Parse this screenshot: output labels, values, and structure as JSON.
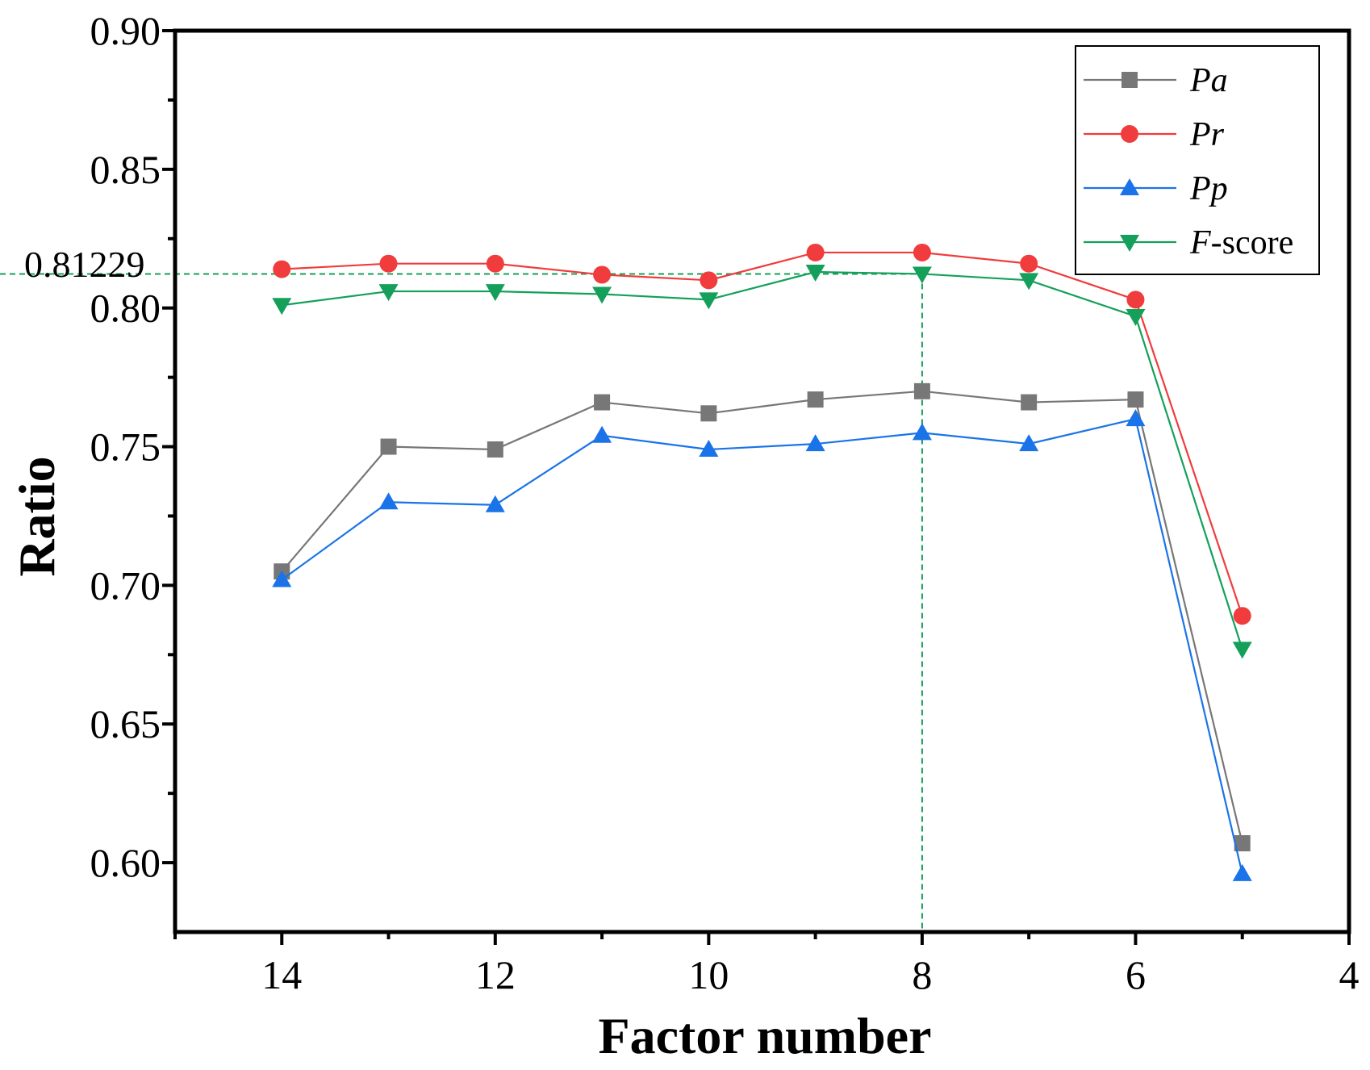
{
  "chart_data": {
    "type": "line",
    "title": "",
    "xlabel": "Factor number",
    "ylabel": "Ratio",
    "xlim": [
      15,
      4
    ],
    "ylim": [
      0.575,
      0.9
    ],
    "x_ticks": [
      14,
      12,
      10,
      8,
      6,
      4
    ],
    "x_tick_labels": [
      "14",
      "12",
      "10",
      "8",
      "6",
      "4"
    ],
    "y_ticks": [
      0.6,
      0.65,
      0.7,
      0.75,
      0.8,
      0.85,
      0.9
    ],
    "y_tick_labels": [
      "0.60",
      "0.65",
      "0.70",
      "0.75",
      "0.80",
      "0.85",
      "0.90"
    ],
    "x": [
      14,
      13,
      12,
      11,
      10,
      9,
      8,
      7,
      6,
      5
    ],
    "series": [
      {
        "name": "Pa",
        "italic": true,
        "color": "#777777",
        "marker": "square",
        "values": [
          0.705,
          0.75,
          0.749,
          0.766,
          0.762,
          0.767,
          0.77,
          0.766,
          0.767,
          0.607
        ]
      },
      {
        "name": "Pr",
        "italic": true,
        "color": "#f03c3c",
        "marker": "circle",
        "values": [
          0.814,
          0.816,
          0.816,
          0.812,
          0.81,
          0.82,
          0.82,
          0.816,
          0.803,
          0.689
        ]
      },
      {
        "name": "Pp",
        "italic": true,
        "color": "#1a73e8",
        "marker": "triangle-up",
        "values": [
          0.702,
          0.73,
          0.729,
          0.754,
          0.749,
          0.751,
          0.755,
          0.751,
          0.76,
          0.596
        ]
      },
      {
        "name": "F-score",
        "italic": false,
        "italic_prefix": "F",
        "suffix": "-score",
        "color": "#14a05a",
        "marker": "triangle-down",
        "values": [
          0.801,
          0.806,
          0.806,
          0.805,
          0.803,
          0.813,
          0.81229,
          0.81,
          0.797,
          0.677
        ]
      }
    ],
    "reference_lines": {
      "x": 8,
      "y": 0.81229,
      "label": "0.81229",
      "color": "#14a05a"
    },
    "legend_position": "top-right",
    "grid": false
  }
}
